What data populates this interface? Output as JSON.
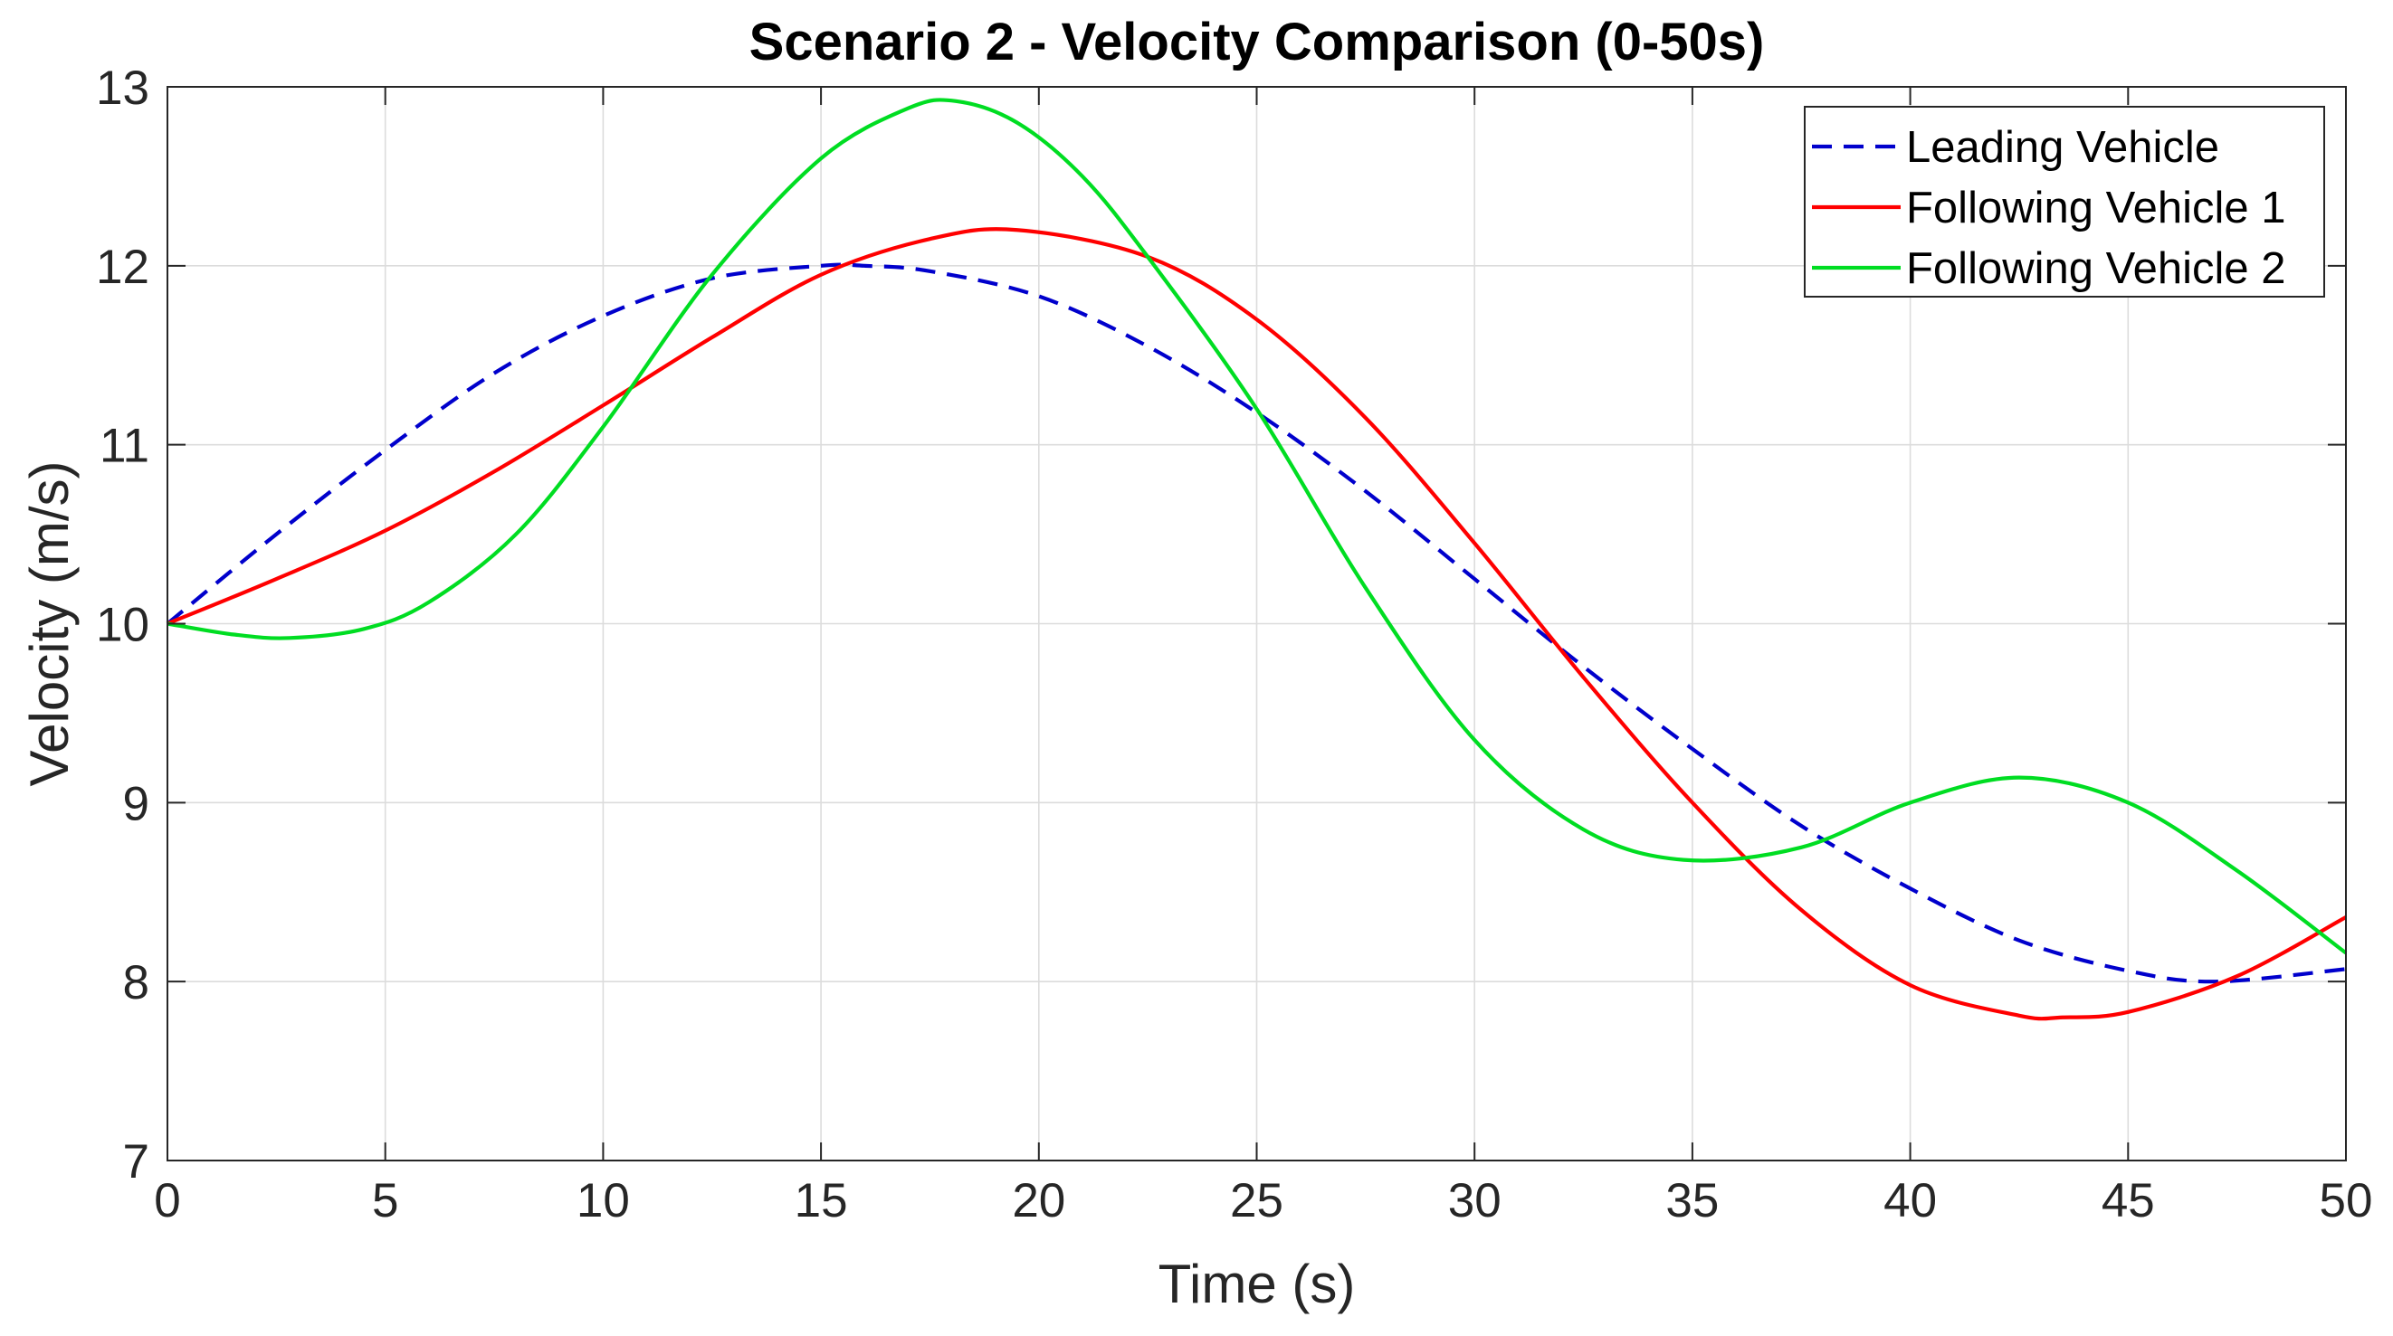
{
  "chart_data": {
    "type": "line",
    "title": "Scenario 2 - Velocity Comparison (0-50s)",
    "xlabel": "Time (s)",
    "ylabel": "Velocity (m/s)",
    "xlim": [
      0,
      50
    ],
    "ylim": [
      7,
      13
    ],
    "xticks": [
      0,
      5,
      10,
      15,
      20,
      25,
      30,
      35,
      40,
      45,
      50
    ],
    "yticks": [
      7,
      8,
      9,
      10,
      11,
      12,
      13
    ],
    "grid": true,
    "legend_position": "top-right",
    "series": [
      {
        "name": "Leading Vehicle",
        "color": "#0000cc",
        "style": "dashed",
        "x": [
          0,
          2.5,
          5,
          7.5,
          10,
          12.5,
          15,
          16,
          17.5,
          20,
          22.5,
          25,
          27.5,
          30,
          32.5,
          35,
          37.5,
          40,
          42.5,
          45,
          47,
          50
        ],
        "y": [
          10.0,
          10.5,
          10.97,
          11.4,
          11.72,
          11.93,
          12.0,
          12.0,
          11.97,
          11.83,
          11.55,
          11.18,
          10.74,
          10.25,
          9.76,
          9.3,
          8.87,
          8.52,
          8.23,
          8.06,
          8.0,
          8.07
        ]
      },
      {
        "name": "Following Vehicle 1",
        "color": "#ff0000",
        "style": "solid",
        "x": [
          0,
          2.5,
          5,
          7.5,
          10,
          12.5,
          15,
          17.5,
          19.5,
          22.5,
          25,
          27.5,
          30,
          32.5,
          35,
          37.5,
          40,
          42.5,
          43.5,
          45,
          47.5,
          50
        ],
        "y": [
          10.0,
          10.25,
          10.52,
          10.85,
          11.22,
          11.6,
          11.95,
          12.15,
          12.2,
          12.05,
          11.7,
          11.15,
          10.45,
          9.7,
          9.0,
          8.4,
          7.98,
          7.81,
          7.8,
          7.83,
          8.03,
          8.36
        ]
      },
      {
        "name": "Following Vehicle 2",
        "color": "#00dd22",
        "style": "solid",
        "x": [
          0,
          1.5,
          2.8,
          4.5,
          6,
          8,
          10,
          12.5,
          15,
          17,
          18.1,
          19.5,
          21,
          22.5,
          25,
          27.5,
          30,
          32.5,
          34.8,
          37.5,
          40,
          42.5,
          45,
          47.5,
          50
        ],
        "y": [
          10.0,
          9.94,
          9.92,
          9.97,
          10.12,
          10.5,
          11.1,
          11.95,
          12.6,
          12.88,
          12.92,
          12.8,
          12.5,
          12.05,
          11.2,
          10.2,
          9.35,
          8.85,
          8.68,
          8.75,
          9.0,
          9.14,
          9.0,
          8.62,
          8.16
        ]
      }
    ]
  }
}
